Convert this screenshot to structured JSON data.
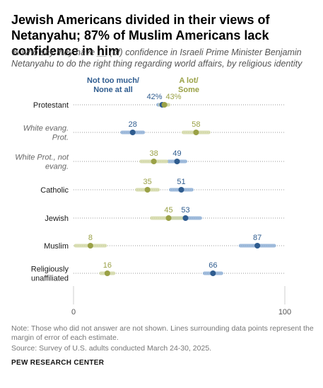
{
  "title": "Jewish Americans divided in their views of Netanyahu; 87% of Muslim Americans lack confidence in him",
  "subtitle": "% who say they have __ (of) confidence in Israeli Prime Minister Benjamin Netanyahu to do the right thing regarding world affairs, by religious identity",
  "note": "Note: Those who did not answer are not shown. Lines surrounding data points represent the margin of error of each estimate.",
  "source": "Source: Survey of U.S. adults conducted March 24-30, 2025.",
  "brand": "PEW RESEARCH CENTER",
  "colors": {
    "not_too_much": "#2f5c8f",
    "a_lot": "#9aa146",
    "not_too_much_moe": "#8fb0d6",
    "a_lot_moe": "#d3d9a6"
  },
  "chart_data": {
    "type": "scatter",
    "categories": [
      {
        "label": [
          "Protestant"
        ],
        "italic": false
      },
      {
        "label": [
          "White evang.",
          "Prot."
        ],
        "italic": true
      },
      {
        "label": [
          "White Prot., not",
          "evang."
        ],
        "italic": true
      },
      {
        "label": [
          "Catholic"
        ],
        "italic": false
      },
      {
        "label": [
          "Jewish"
        ],
        "italic": false
      },
      {
        "label": [
          "Muslim"
        ],
        "italic": false
      },
      {
        "label": [
          "Religiously",
          "unaffiliated"
        ],
        "italic": false
      }
    ],
    "series": [
      {
        "name": "Not too much/ None at all",
        "color": "#2f5c8f",
        "values": [
          42,
          28,
          49,
          51,
          53,
          87,
          66
        ],
        "labels": [
          "42%",
          "28",
          "49",
          "51",
          "53",
          "87",
          "66"
        ],
        "moe": [
          2,
          5,
          4,
          5,
          7,
          8,
          4
        ]
      },
      {
        "name": "A lot/ Some",
        "color": "#9aa146",
        "values": [
          43,
          58,
          38,
          35,
          45,
          8,
          16
        ],
        "labels": [
          "43%",
          "58",
          "38",
          "35",
          "45",
          "8",
          "16"
        ],
        "moe": [
          2,
          6,
          6,
          5,
          8,
          7,
          3
        ]
      }
    ],
    "legend": {
      "not_too_much": [
        "Not too much/",
        "None at all"
      ],
      "a_lot": [
        "A lot/",
        "Some"
      ]
    },
    "xlim": [
      0,
      100
    ],
    "xticks": [
      "0",
      "100"
    ],
    "grid": "dotted-row-lines"
  }
}
